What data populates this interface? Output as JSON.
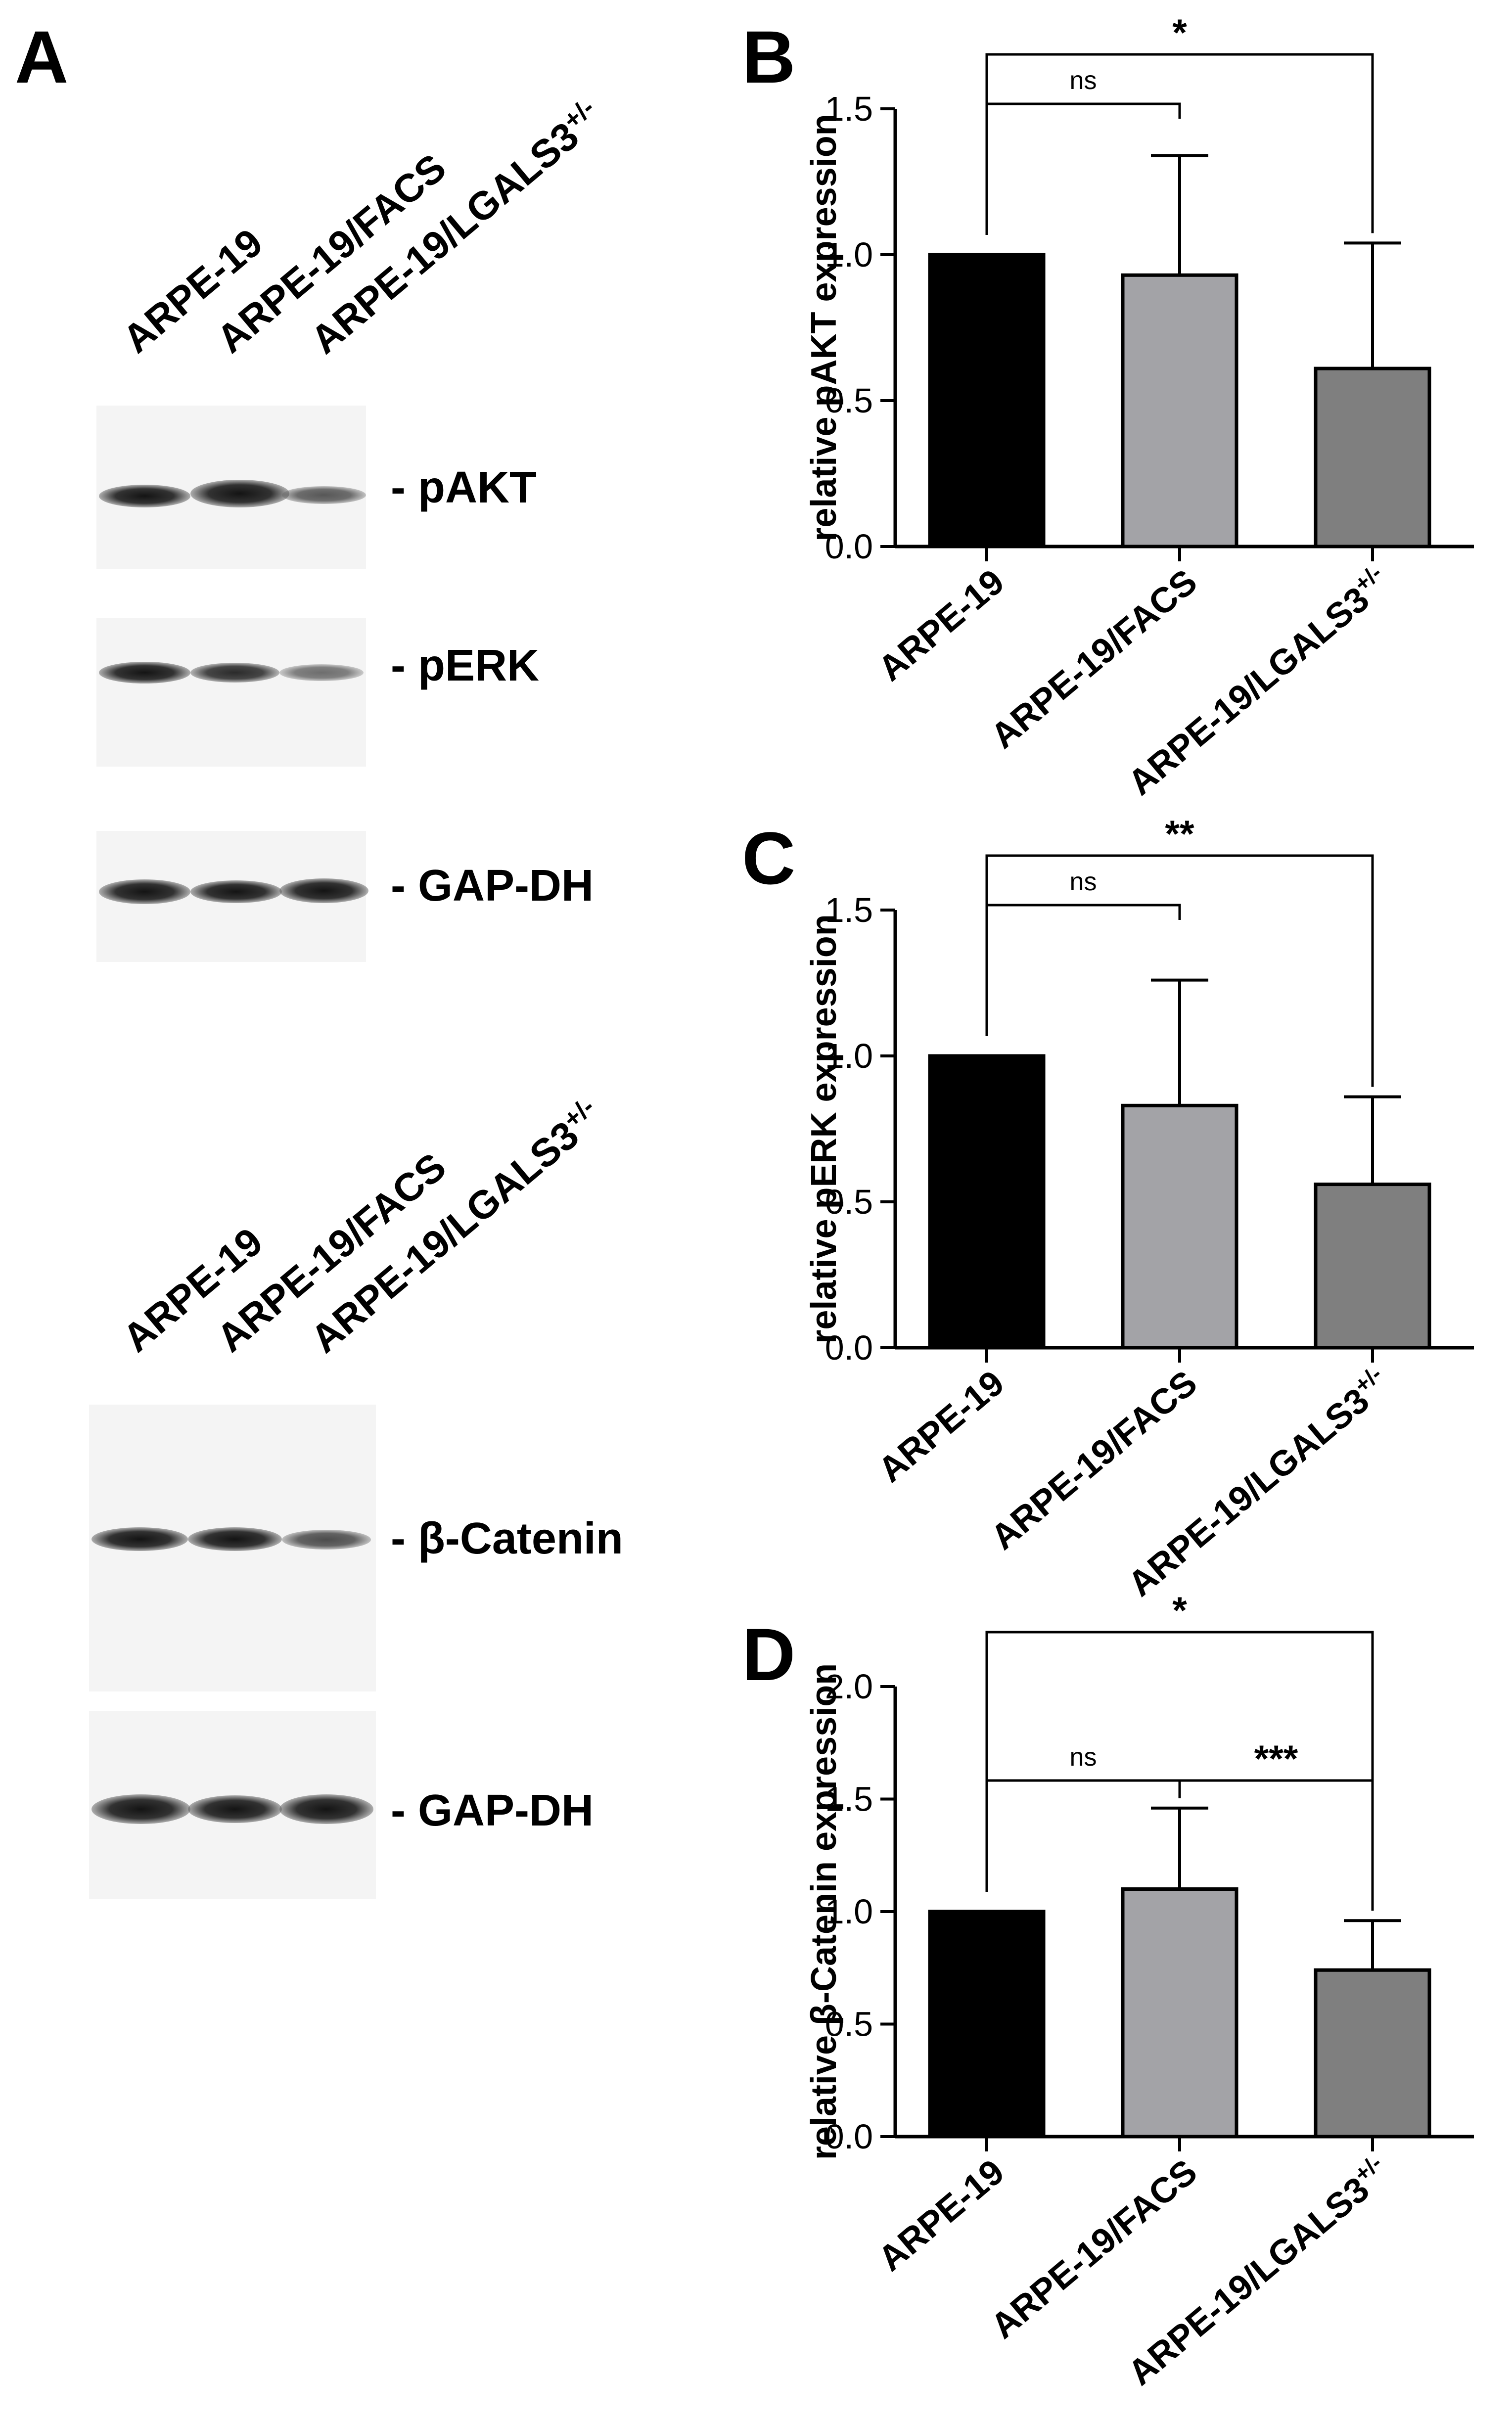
{
  "panels": {
    "A": "A",
    "B": "B",
    "C": "C",
    "D": "D"
  },
  "blot_top": {
    "lanes": [
      "ARPE-19",
      "ARPE-19/FACS",
      "ARPE-19/LGALS3"
    ],
    "lane_superscript": "+/-",
    "bands": [
      {
        "label": "- pAKT",
        "intensity": [
          0.75,
          1.0,
          0.45
        ]
      },
      {
        "label": "- pERK",
        "intensity": [
          0.7,
          0.6,
          0.4
        ]
      },
      {
        "label": "- GAP-DH",
        "intensity": [
          0.9,
          0.85,
          0.9
        ]
      }
    ]
  },
  "blot_bottom": {
    "lanes": [
      "ARPE-19",
      "ARPE-19/FACS",
      "ARPE-19/LGALS3"
    ],
    "lane_superscript": "+/-",
    "bands": [
      {
        "label": "- β-Catenin",
        "intensity": [
          0.9,
          0.85,
          0.55
        ]
      },
      {
        "label": "- GAP-DH",
        "intensity": [
          1.0,
          0.95,
          1.0
        ]
      }
    ]
  },
  "chart_data": [
    {
      "type": "bar",
      "panel": "B",
      "categories": [
        "ARPE-19",
        "ARPE-19/FACS",
        "ARPE-19/LGALS3"
      ],
      "category_superscript": [
        "",
        "",
        "+/-"
      ],
      "values": [
        1.0,
        0.93,
        0.61
      ],
      "errors": [
        0.0,
        0.41,
        0.43
      ],
      "colors": [
        "#000000",
        "#a3a3a7",
        "#7f7f7f"
      ],
      "ylabel": "relative pAKT expression",
      "ylim": [
        0,
        1.5
      ],
      "yticks": [
        "0.0",
        "0.5",
        "1.0",
        "1.5"
      ],
      "brackets": [
        {
          "from": 0,
          "to": 1,
          "label": "ns"
        },
        {
          "from": 0,
          "to": 2,
          "label": "*"
        }
      ]
    },
    {
      "type": "bar",
      "panel": "C",
      "categories": [
        "ARPE-19",
        "ARPE-19/FACS",
        "ARPE-19/LGALS3"
      ],
      "category_superscript": [
        "",
        "",
        "+/-"
      ],
      "values": [
        1.0,
        0.83,
        0.56
      ],
      "errors": [
        0.0,
        0.43,
        0.3
      ],
      "colors": [
        "#000000",
        "#a3a3a7",
        "#7f7f7f"
      ],
      "ylabel": "relative pERK expression",
      "ylim": [
        0,
        1.5
      ],
      "yticks": [
        "0.0",
        "0.5",
        "1.0",
        "1.5"
      ],
      "brackets": [
        {
          "from": 0,
          "to": 1,
          "label": "ns"
        },
        {
          "from": 0,
          "to": 2,
          "label": "**"
        }
      ]
    },
    {
      "type": "bar",
      "panel": "D",
      "categories": [
        "ARPE-19",
        "ARPE-19/FACS",
        "ARPE-19/LGALS3"
      ],
      "category_superscript": [
        "",
        "",
        "+/-"
      ],
      "values": [
        1.0,
        1.1,
        0.74
      ],
      "errors": [
        0.0,
        0.36,
        0.22
      ],
      "colors": [
        "#000000",
        "#a3a3a7",
        "#7f7f7f"
      ],
      "ylabel": "relative β-Catenin expression",
      "ylim": [
        0,
        2.0
      ],
      "yticks": [
        "0.0",
        "0.5",
        "1.0",
        "1.5",
        "2.0"
      ],
      "brackets": [
        {
          "from": 0,
          "to": 1,
          "label": "ns"
        },
        {
          "from": 1,
          "to": 2,
          "label": "***"
        },
        {
          "from": 0,
          "to": 2,
          "label": "*"
        }
      ]
    }
  ]
}
